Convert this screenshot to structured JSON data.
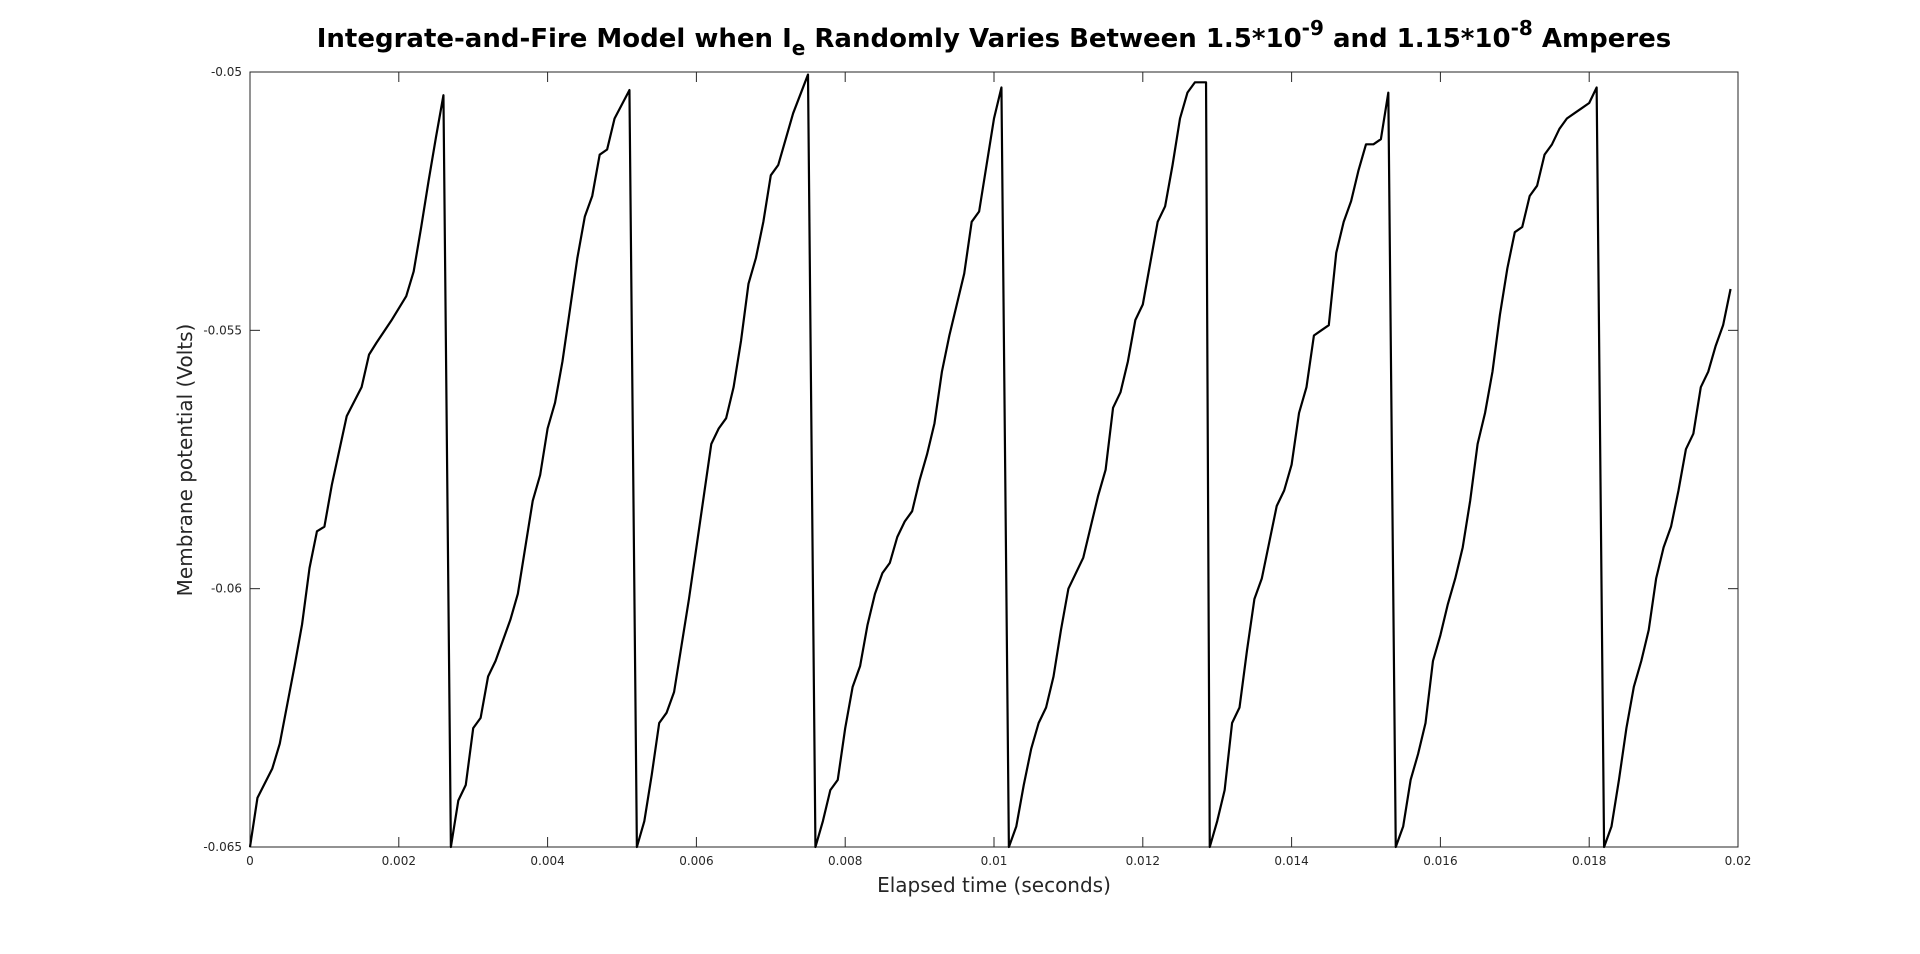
{
  "chart_data": {
    "type": "line",
    "title": [
      "Integrate-and-Fire Model when I",
      "e",
      " Randomly Varies Between 1.5*10",
      "-9",
      " and 1.15*10",
      "-8",
      " Amperes"
    ],
    "x_label": "Elapsed time (seconds)",
    "y_label": "Membrane potential (Volts)",
    "xlim": [
      0,
      0.02
    ],
    "ylim": [
      -0.065,
      -0.05
    ],
    "xticks": [
      0,
      0.002,
      0.004,
      0.006,
      0.008,
      0.01,
      0.012,
      0.014,
      0.016,
      0.018,
      0.02
    ],
    "yticks": [
      -0.065,
      -0.06,
      -0.055,
      -0.05
    ],
    "grid": false,
    "series": [
      {
        "color": "#000000",
        "x": [
          0,
          0.0001,
          0.0003,
          0.0004,
          0.0006,
          0.0007,
          0.0008,
          0.0009,
          0.001,
          0.0011,
          0.0013,
          0.0015,
          0.0016,
          0.0017,
          0.0019,
          0.0021,
          0.0022,
          0.0023,
          0.0024,
          0.0025,
          0.0026,
          0.0027,
          0.0028,
          0.0029,
          0.003,
          0.0031,
          0.0032,
          0.0033,
          0.0035,
          0.0036,
          0.0037,
          0.0038,
          0.0039,
          0.004,
          0.0041,
          0.0042,
          0.0043,
          0.0044,
          0.0045,
          0.0046,
          0.0047,
          0.0048,
          0.0049,
          0.0051,
          0.0052,
          0.0053,
          0.0054,
          0.0055,
          0.0056,
          0.0057,
          0.0058,
          0.0059,
          0.006,
          0.0061,
          0.0062,
          0.0063,
          0.0064,
          0.0065,
          0.0066,
          0.0067,
          0.0068,
          0.0069,
          0.007,
          0.0071,
          0.0072,
          0.0073,
          0.0075,
          0.0076,
          0.0077,
          0.0078,
          0.0079,
          0.008,
          0.0081,
          0.0082,
          0.0083,
          0.0084,
          0.0085,
          0.0086,
          0.0087,
          0.0088,
          0.0089,
          0.009,
          0.0091,
          0.0092,
          0.0093,
          0.0094,
          0.0095,
          0.0096,
          0.0097,
          0.0098,
          0.0099,
          0.01,
          0.0101,
          0.0102,
          0.0103,
          0.0104,
          0.0105,
          0.0106,
          0.0107,
          0.0108,
          0.0109,
          0.011,
          0.0111,
          0.0112,
          0.0113,
          0.0114,
          0.0115,
          0.0116,
          0.0117,
          0.0118,
          0.0119,
          0.012,
          0.0121,
          0.0122,
          0.0123,
          0.0124,
          0.0125,
          0.0126,
          0.0127,
          0.01285,
          0.0129,
          0.013,
          0.0131,
          0.0132,
          0.0133,
          0.0134,
          0.0135,
          0.0136,
          0.0137,
          0.0138,
          0.0139,
          0.014,
          0.0141,
          0.0142,
          0.0143,
          0.0144,
          0.0145,
          0.0146,
          0.0147,
          0.0148,
          0.0149,
          0.015,
          0.0151,
          0.0152,
          0.0153,
          0.0154,
          0.0155,
          0.0156,
          0.0157,
          0.0158,
          0.0159,
          0.016,
          0.0161,
          0.0162,
          0.0163,
          0.0164,
          0.0165,
          0.0166,
          0.0167,
          0.0168,
          0.0169,
          0.017,
          0.0171,
          0.0172,
          0.0173,
          0.0174,
          0.0175,
          0.0176,
          0.0177,
          0.0178,
          0.0179,
          0.018,
          0.0181,
          0.0182,
          0.0183,
          0.0184,
          0.0185,
          0.0186,
          0.0187,
          0.0188,
          0.0189,
          0.019,
          0.0191,
          0.0192,
          0.0193,
          0.0194,
          0.0195,
          0.0196,
          0.0197,
          0.0198,
          0.0199
        ],
        "values": [
          -0.065,
          -0.06405,
          -0.06348,
          -0.063,
          -0.06149,
          -0.06069,
          -0.0596,
          -0.05889,
          -0.0588,
          -0.05799,
          -0.05666,
          -0.0561,
          -0.05547,
          -0.05524,
          -0.05481,
          -0.05434,
          -0.05386,
          -0.05301,
          -0.05211,
          -0.05126,
          -0.05045,
          -0.065,
          -0.0641,
          -0.0638,
          -0.0627,
          -0.0625,
          -0.0617,
          -0.0614,
          -0.0606,
          -0.0601,
          -0.0592,
          -0.0583,
          -0.0578,
          -0.0569,
          -0.0564,
          -0.0556,
          -0.0546,
          -0.0536,
          -0.0528,
          -0.0524,
          -0.0516,
          -0.0515,
          -0.0509,
          -0.05035,
          -0.065,
          -0.0645,
          -0.0636,
          -0.0626,
          -0.0624,
          -0.062,
          -0.0611,
          -0.0602,
          -0.0592,
          -0.0582,
          -0.0572,
          -0.0569,
          -0.0567,
          -0.0561,
          -0.0552,
          -0.0541,
          -0.0536,
          -0.0529,
          -0.052,
          -0.0518,
          -0.0513,
          -0.0508,
          -0.05005,
          -0.065,
          -0.0645,
          -0.0639,
          -0.0637,
          -0.0627,
          -0.0619,
          -0.0615,
          -0.0607,
          -0.0601,
          -0.0597,
          -0.0595,
          -0.059,
          -0.0587,
          -0.0585,
          -0.0579,
          -0.0574,
          -0.0568,
          -0.0558,
          -0.0551,
          -0.0545,
          -0.0539,
          -0.0529,
          -0.0527,
          -0.0518,
          -0.0509,
          -0.0503,
          -0.065,
          -0.0646,
          -0.0638,
          -0.0631,
          -0.0626,
          -0.0623,
          -0.0617,
          -0.0608,
          -0.06,
          -0.0597,
          -0.0594,
          -0.0588,
          -0.0582,
          -0.0577,
          -0.0565,
          -0.0562,
          -0.0556,
          -0.0548,
          -0.0545,
          -0.0537,
          -0.0529,
          -0.0526,
          -0.0518,
          -0.0509,
          -0.0504,
          -0.0502,
          -0.0502,
          -0.065,
          -0.0645,
          -0.0639,
          -0.0626,
          -0.0623,
          -0.0612,
          -0.0602,
          -0.0598,
          -0.0591,
          -0.0584,
          -0.0581,
          -0.0576,
          -0.0566,
          -0.0561,
          -0.0551,
          -0.055,
          -0.0549,
          -0.0535,
          -0.0529,
          -0.0525,
          -0.0519,
          -0.0514,
          -0.0514,
          -0.0513,
          -0.0504,
          -0.065,
          -0.0646,
          -0.0637,
          -0.0632,
          -0.0626,
          -0.0614,
          -0.0609,
          -0.0603,
          -0.0598,
          -0.0592,
          -0.0583,
          -0.0572,
          -0.0566,
          -0.0558,
          -0.0547,
          -0.0538,
          -0.0531,
          -0.053,
          -0.0524,
          -0.0522,
          -0.0516,
          -0.0514,
          -0.0511,
          -0.0509,
          -0.0508,
          -0.0507,
          -0.0506,
          -0.0503,
          -0.065,
          -0.0646,
          -0.0637,
          -0.0627,
          -0.0619,
          -0.0614,
          -0.0608,
          -0.0598,
          -0.0592,
          -0.0588,
          -0.0581,
          -0.0573,
          -0.057,
          -0.0561,
          -0.0558,
          -0.0553,
          -0.0549,
          -0.0542
        ]
      }
    ]
  }
}
